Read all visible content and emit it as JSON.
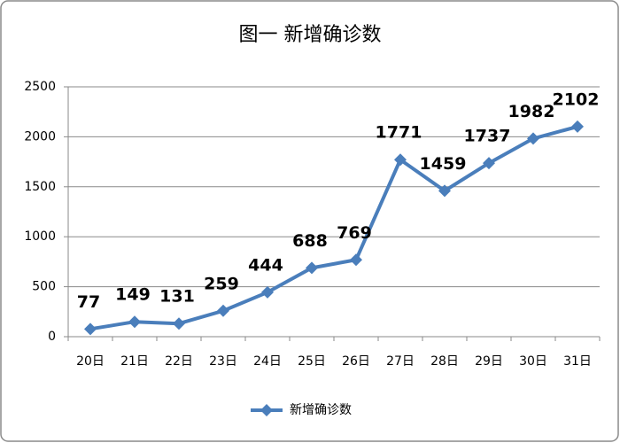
{
  "chart_data": {
    "type": "line",
    "title": "图一 新增确诊数",
    "categories": [
      "20日",
      "21日",
      "22日",
      "23日",
      "24日",
      "25日",
      "26日",
      "27日",
      "28日",
      "29日",
      "30日",
      "31日"
    ],
    "series": [
      {
        "name": "新增确诊数",
        "color": "#4a7ebb",
        "values": [
          77,
          149,
          131,
          259,
          444,
          688,
          769,
          1771,
          1459,
          1737,
          1982,
          2102
        ]
      }
    ],
    "ylim": [
      0,
      2500
    ],
    "yticks": [
      0,
      500,
      1000,
      1500,
      2000,
      2500
    ],
    "grid": true,
    "legend": "bottom"
  }
}
